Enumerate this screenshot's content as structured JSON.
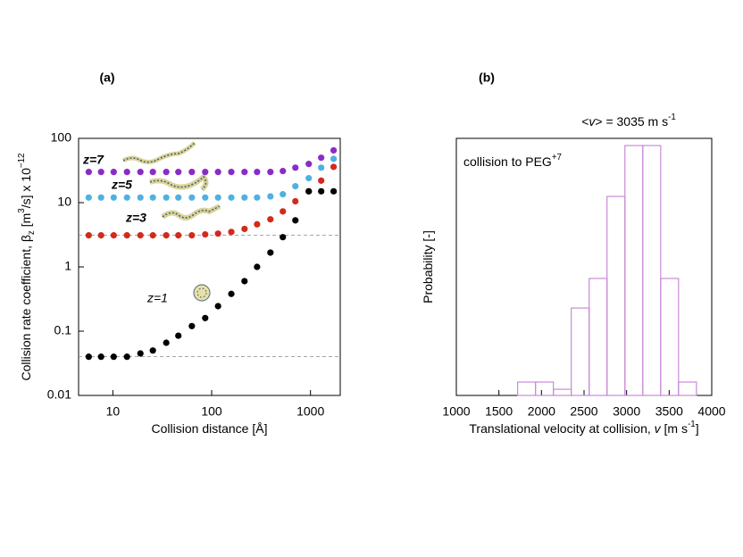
{
  "chart_data": [
    {
      "type": "scatter",
      "title": "(a)",
      "xlabel": [
        {
          "text": "Collision distance [Å]"
        }
      ],
      "ylabel": [
        {
          "text": "Collision rate coefficient, β"
        },
        {
          "text": "z",
          "style": "sub"
        },
        {
          "text": " [m"
        },
        {
          "text": "3",
          "style": "sup"
        },
        {
          "text": "/s] x 10"
        },
        {
          "text": "−12",
          "style": "sup"
        }
      ],
      "xscale": "log",
      "yscale": "log",
      "xlim": [
        4.5,
        2000
      ],
      "ylim": [
        0.01,
        100
      ],
      "xticks": [
        10,
        100,
        1000
      ],
      "yticks": [
        0.01,
        0.1,
        1,
        10,
        100
      ],
      "hlines": [
        3.1,
        0.04
      ],
      "x": [
        5.7,
        7.6,
        10.2,
        13.9,
        19,
        25.4,
        34.7,
        46,
        63,
        86,
        116,
        158,
        215,
        288,
        393,
        525,
        703,
        960,
        1283,
        1714
      ],
      "series": [
        {
          "name": "z=7",
          "color": "#8b2bc7",
          "values": [
            30,
            30,
            30,
            30,
            30,
            30,
            30,
            30,
            30,
            30,
            30,
            30,
            30,
            30,
            30,
            31,
            35,
            40,
            50,
            65
          ]
        },
        {
          "name": "z=5",
          "color": "#4fb1e0",
          "values": [
            12,
            12,
            12,
            12,
            12,
            12,
            12,
            12,
            12,
            12,
            12,
            12,
            12,
            12,
            12.5,
            13.5,
            18,
            24,
            35,
            48
          ]
        },
        {
          "name": "z=3",
          "color": "#d32a1c",
          "values": [
            3.1,
            3.1,
            3.1,
            3.1,
            3.1,
            3.1,
            3.1,
            3.1,
            3.1,
            3.2,
            3.3,
            3.5,
            3.9,
            4.6,
            5.5,
            7.3,
            10.5,
            15,
            22,
            36
          ]
        },
        {
          "name": "z=1",
          "color": "#000000",
          "values": [
            0.04,
            0.04,
            0.04,
            0.04,
            0.045,
            0.05,
            0.066,
            0.085,
            0.12,
            0.16,
            0.245,
            0.38,
            0.6,
            1.0,
            1.67,
            2.9,
            5.3,
            15,
            15,
            15
          ]
        }
      ]
    },
    {
      "type": "histogram",
      "title": "(b)",
      "subtitle": [
        {
          "text": "<"
        },
        {
          "text": "v",
          "style": "italic"
        },
        {
          "text": "> = 3035 m s"
        },
        {
          "text": "-1",
          "style": "sup"
        }
      ],
      "annotation": [
        {
          "text": "collision to PEG"
        },
        {
          "text": "+7",
          "style": "sup"
        }
      ],
      "annotation_color": "#8b2bc7",
      "xlabel": [
        {
          "text": "Translational velocity at collision, "
        },
        {
          "text": "v",
          "style": "italic"
        },
        {
          "text": " [m s"
        },
        {
          "text": "-1",
          "style": "sup"
        },
        {
          "text": "]"
        }
      ],
      "ylabel": [
        {
          "text": "Probability [-]"
        }
      ],
      "xlim": [
        1000,
        4000
      ],
      "ylim": [
        0,
        1
      ],
      "xticks": [
        1000,
        1500,
        2000,
        2500,
        3000,
        3500,
        4000
      ],
      "bins": [
        1720,
        1930,
        2140,
        2350,
        2560,
        2770,
        2980,
        3190,
        3400,
        3610,
        3820
      ],
      "values": [
        0.052,
        0.052,
        0.024,
        0.34,
        0.455,
        0.774,
        0.972,
        0.972,
        0.455,
        0.052
      ],
      "color": "#c98ad8"
    }
  ]
}
